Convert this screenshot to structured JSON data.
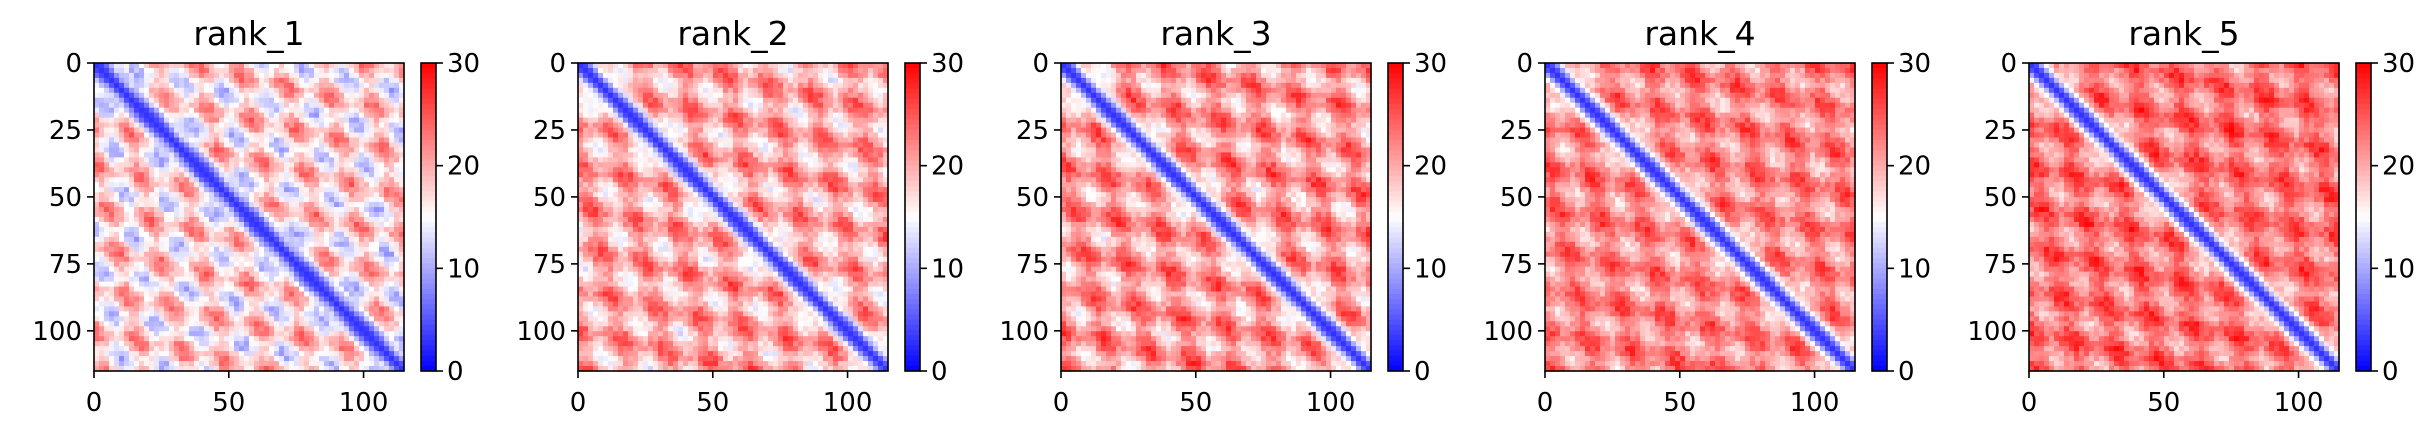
{
  "figure": {
    "colormap": {
      "name": "bwr",
      "low": "#0000ff",
      "mid": "#ffffff",
      "high": "#ff0000"
    }
  },
  "chart_data": [
    {
      "type": "heatmap",
      "title": "rank_1",
      "xlim": [
        0,
        115
      ],
      "ylim": [
        115,
        0
      ],
      "x_ticks": [
        "0",
        "50",
        "100"
      ],
      "y_ticks": [
        "0",
        "25",
        "50",
        "75",
        "100"
      ],
      "colorbar": {
        "vmin": 0,
        "vmax": 30,
        "ticks": [
          "0",
          "10",
          "20",
          "30"
        ]
      },
      "pattern": {
        "diag_value": 3,
        "mean_value": 17,
        "amplitude": 7,
        "period": 25,
        "diag_width": 4
      }
    },
    {
      "type": "heatmap",
      "title": "rank_2",
      "xlim": [
        0,
        115
      ],
      "ylim": [
        115,
        0
      ],
      "x_ticks": [
        "0",
        "50",
        "100"
      ],
      "y_ticks": [
        "0",
        "25",
        "50",
        "75",
        "100"
      ],
      "colorbar": {
        "vmin": 0,
        "vmax": 30,
        "ticks": [
          "0",
          "10",
          "20",
          "30"
        ]
      },
      "pattern": {
        "diag_value": 3,
        "mean_value": 20,
        "amplitude": 6,
        "period": 25,
        "diag_width": 4
      }
    },
    {
      "type": "heatmap",
      "title": "rank_3",
      "xlim": [
        0,
        115
      ],
      "ylim": [
        115,
        0
      ],
      "x_ticks": [
        "0",
        "50",
        "100"
      ],
      "y_ticks": [
        "0",
        "25",
        "50",
        "75",
        "100"
      ],
      "colorbar": {
        "vmin": 0,
        "vmax": 30,
        "ticks": [
          "0",
          "10",
          "20",
          "30"
        ]
      },
      "pattern": {
        "diag_value": 3,
        "mean_value": 21,
        "amplitude": 6,
        "period": 25,
        "diag_width": 4
      }
    },
    {
      "type": "heatmap",
      "title": "rank_4",
      "xlim": [
        0,
        115
      ],
      "ylim": [
        115,
        0
      ],
      "x_ticks": [
        "0",
        "50",
        "100"
      ],
      "y_ticks": [
        "0",
        "25",
        "50",
        "75",
        "100"
      ],
      "colorbar": {
        "vmin": 0,
        "vmax": 30,
        "ticks": [
          "0",
          "10",
          "20",
          "30"
        ]
      },
      "pattern": {
        "diag_value": 3,
        "mean_value": 22,
        "amplitude": 5,
        "period": 25,
        "diag_width": 4
      }
    },
    {
      "type": "heatmap",
      "title": "rank_5",
      "xlim": [
        0,
        115
      ],
      "ylim": [
        115,
        0
      ],
      "x_ticks": [
        "0",
        "50",
        "100"
      ],
      "y_ticks": [
        "0",
        "25",
        "50",
        "75",
        "100"
      ],
      "colorbar": {
        "vmin": 0,
        "vmax": 30,
        "ticks": [
          "0",
          "10",
          "20",
          "30"
        ]
      },
      "pattern": {
        "diag_value": 3,
        "mean_value": 23,
        "amplitude": 5,
        "period": 25,
        "diag_width": 4
      }
    }
  ]
}
